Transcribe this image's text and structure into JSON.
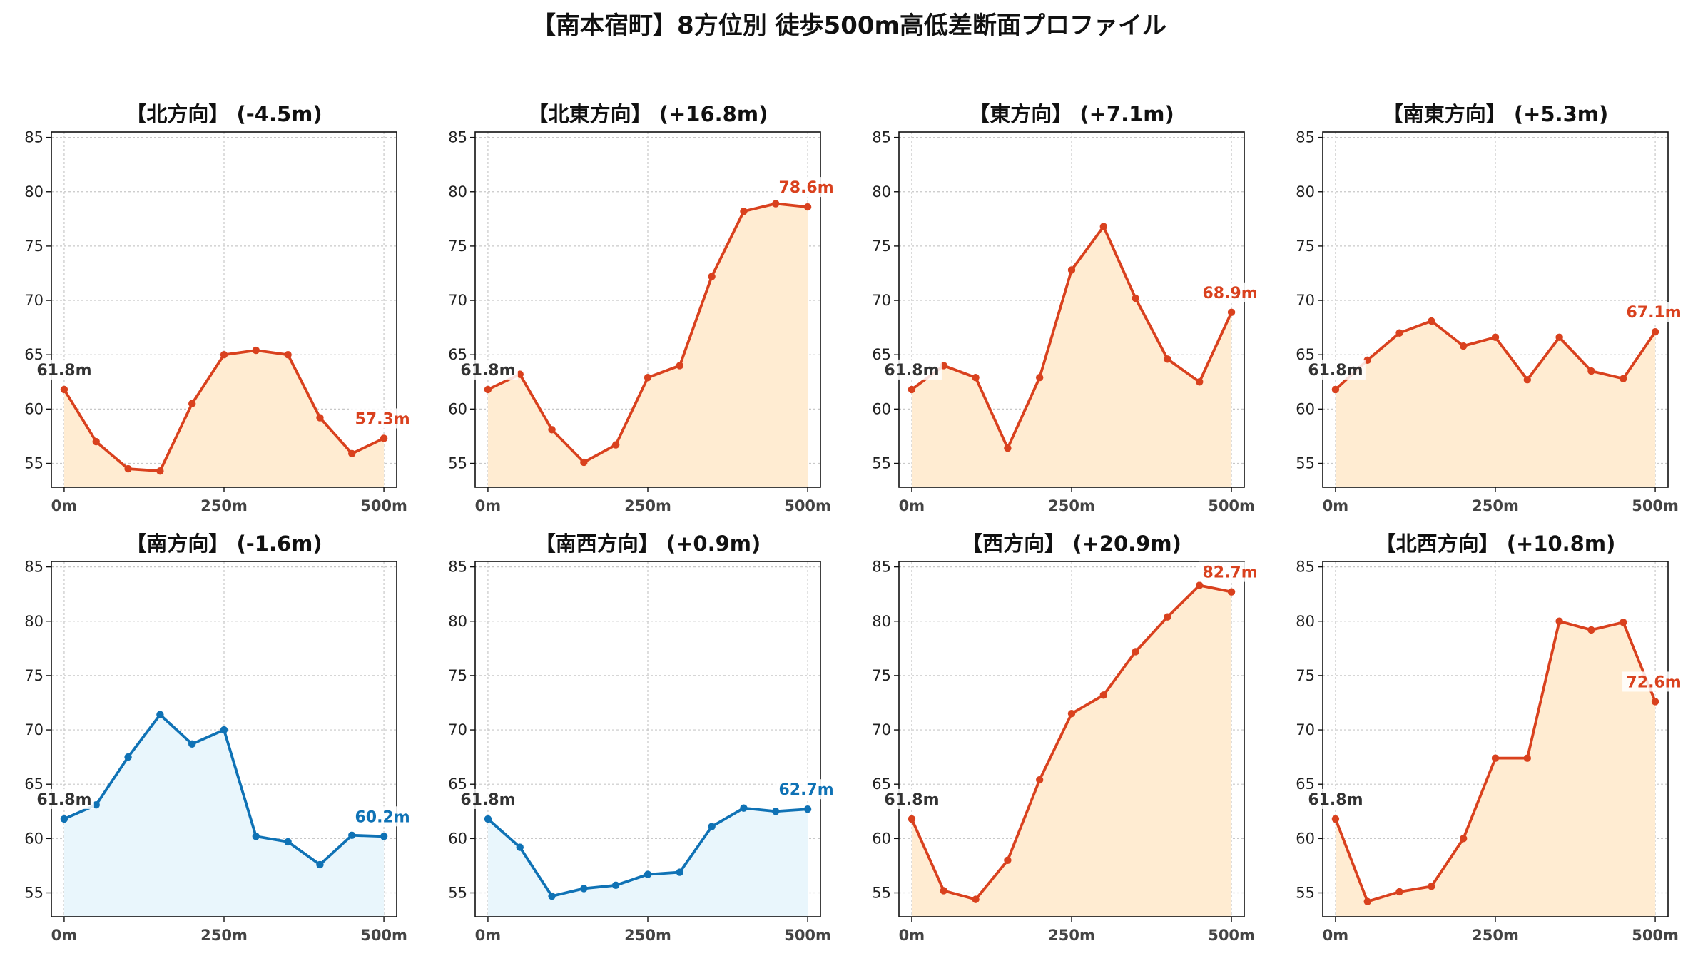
{
  "title": "【南本宿町】8方位別 徒歩500m高低差断面プロファイル",
  "colors": {
    "up_line": "#d9411e",
    "up_fill": "#ffecd2",
    "down_line": "#0f72b5",
    "down_fill": "#e9f6fc",
    "start_label": "#333333"
  },
  "chart_data": [
    {
      "type": "area",
      "title": "【北方向】 (-4.5m)",
      "trend": "down_red",
      "x": [
        0,
        50,
        100,
        150,
        200,
        250,
        300,
        350,
        400,
        450,
        500
      ],
      "y": [
        61.8,
        57.0,
        54.5,
        54.3,
        60.5,
        65.0,
        65.4,
        65.0,
        59.2,
        55.9,
        57.3
      ],
      "start_label": "61.8m",
      "end_label": "57.3m",
      "xticks": [
        0,
        250,
        500
      ],
      "xtick_labels": [
        "0m",
        "250m",
        "500m"
      ],
      "yticks": [
        55,
        60,
        65,
        70,
        75,
        80,
        85
      ],
      "xlim": [
        -20,
        520
      ],
      "ylim": [
        52.8,
        85.5
      ],
      "grid": true
    },
    {
      "type": "area",
      "title": "【北東方向】 (+16.8m)",
      "trend": "up",
      "x": [
        0,
        50,
        100,
        150,
        200,
        250,
        300,
        350,
        400,
        450,
        500
      ],
      "y": [
        61.8,
        63.2,
        58.1,
        55.1,
        56.7,
        62.9,
        64.0,
        72.2,
        78.2,
        78.9,
        78.6
      ],
      "start_label": "61.8m",
      "end_label": "78.6m",
      "xticks": [
        0,
        250,
        500
      ],
      "xtick_labels": [
        "0m",
        "250m",
        "500m"
      ],
      "yticks": [
        55,
        60,
        65,
        70,
        75,
        80,
        85
      ],
      "xlim": [
        -20,
        520
      ],
      "ylim": [
        52.8,
        85.5
      ],
      "grid": true
    },
    {
      "type": "area",
      "title": "【東方向】 (+7.1m)",
      "trend": "up",
      "x": [
        0,
        50,
        100,
        150,
        200,
        250,
        300,
        350,
        400,
        450,
        500
      ],
      "y": [
        61.8,
        64.0,
        62.9,
        56.4,
        62.9,
        72.8,
        76.8,
        70.2,
        64.6,
        62.5,
        68.9
      ],
      "start_label": "61.8m",
      "end_label": "68.9m",
      "xticks": [
        0,
        250,
        500
      ],
      "xtick_labels": [
        "0m",
        "250m",
        "500m"
      ],
      "yticks": [
        55,
        60,
        65,
        70,
        75,
        80,
        85
      ],
      "xlim": [
        -20,
        520
      ],
      "ylim": [
        52.8,
        85.5
      ],
      "grid": true
    },
    {
      "type": "area",
      "title": "【南東方向】 (+5.3m)",
      "trend": "up",
      "x": [
        0,
        50,
        100,
        150,
        200,
        250,
        300,
        350,
        400,
        450,
        500
      ],
      "y": [
        61.8,
        64.5,
        67.0,
        68.1,
        65.8,
        66.6,
        62.7,
        66.6,
        63.5,
        62.8,
        67.1
      ],
      "start_label": "61.8m",
      "end_label": "67.1m",
      "xticks": [
        0,
        250,
        500
      ],
      "xtick_labels": [
        "0m",
        "250m",
        "500m"
      ],
      "yticks": [
        55,
        60,
        65,
        70,
        75,
        80,
        85
      ],
      "xlim": [
        -20,
        520
      ],
      "ylim": [
        52.8,
        85.5
      ],
      "grid": true
    },
    {
      "type": "area",
      "title": "【南方向】 (-1.6m)",
      "trend": "down",
      "x": [
        0,
        50,
        100,
        150,
        200,
        250,
        300,
        350,
        400,
        450,
        500
      ],
      "y": [
        61.8,
        63.1,
        67.5,
        71.4,
        68.7,
        70.0,
        60.2,
        59.7,
        57.6,
        60.3,
        60.2
      ],
      "start_label": "61.8m",
      "end_label": "60.2m",
      "xticks": [
        0,
        250,
        500
      ],
      "xtick_labels": [
        "0m",
        "250m",
        "500m"
      ],
      "yticks": [
        55,
        60,
        65,
        70,
        75,
        80,
        85
      ],
      "xlim": [
        -20,
        520
      ],
      "ylim": [
        52.8,
        85.5
      ],
      "grid": true
    },
    {
      "type": "area",
      "title": "【南西方向】 (+0.9m)",
      "trend": "down",
      "x": [
        0,
        50,
        100,
        150,
        200,
        250,
        300,
        350,
        400,
        450,
        500
      ],
      "y": [
        61.8,
        59.2,
        54.7,
        55.4,
        55.7,
        56.7,
        56.9,
        61.1,
        62.8,
        62.5,
        62.7
      ],
      "start_label": "61.8m",
      "end_label": "62.7m",
      "xticks": [
        0,
        250,
        500
      ],
      "xtick_labels": [
        "0m",
        "250m",
        "500m"
      ],
      "yticks": [
        55,
        60,
        65,
        70,
        75,
        80,
        85
      ],
      "xlim": [
        -20,
        520
      ],
      "ylim": [
        52.8,
        85.5
      ],
      "grid": true
    },
    {
      "type": "area",
      "title": "【西方向】 (+20.9m)",
      "trend": "up",
      "x": [
        0,
        50,
        100,
        150,
        200,
        250,
        300,
        350,
        400,
        450,
        500
      ],
      "y": [
        61.8,
        55.2,
        54.4,
        58.0,
        65.4,
        71.5,
        73.2,
        77.2,
        80.4,
        83.3,
        82.7
      ],
      "start_label": "61.8m",
      "end_label": "82.7m",
      "xticks": [
        0,
        250,
        500
      ],
      "xtick_labels": [
        "0m",
        "250m",
        "500m"
      ],
      "yticks": [
        55,
        60,
        65,
        70,
        75,
        80,
        85
      ],
      "xlim": [
        -20,
        520
      ],
      "ylim": [
        52.8,
        85.5
      ],
      "grid": true
    },
    {
      "type": "area",
      "title": "【北西方向】 (+10.8m)",
      "trend": "up",
      "x": [
        0,
        50,
        100,
        150,
        200,
        250,
        300,
        350,
        400,
        450,
        500
      ],
      "y": [
        61.8,
        54.2,
        55.1,
        55.6,
        60.0,
        67.4,
        67.4,
        80.0,
        79.2,
        79.9,
        72.6
      ],
      "start_label": "61.8m",
      "end_label": "72.6m",
      "xticks": [
        0,
        250,
        500
      ],
      "xtick_labels": [
        "0m",
        "250m",
        "500m"
      ],
      "yticks": [
        55,
        60,
        65,
        70,
        75,
        80,
        85
      ],
      "xlim": [
        -20,
        520
      ],
      "ylim": [
        52.8,
        85.5
      ],
      "grid": true
    }
  ]
}
